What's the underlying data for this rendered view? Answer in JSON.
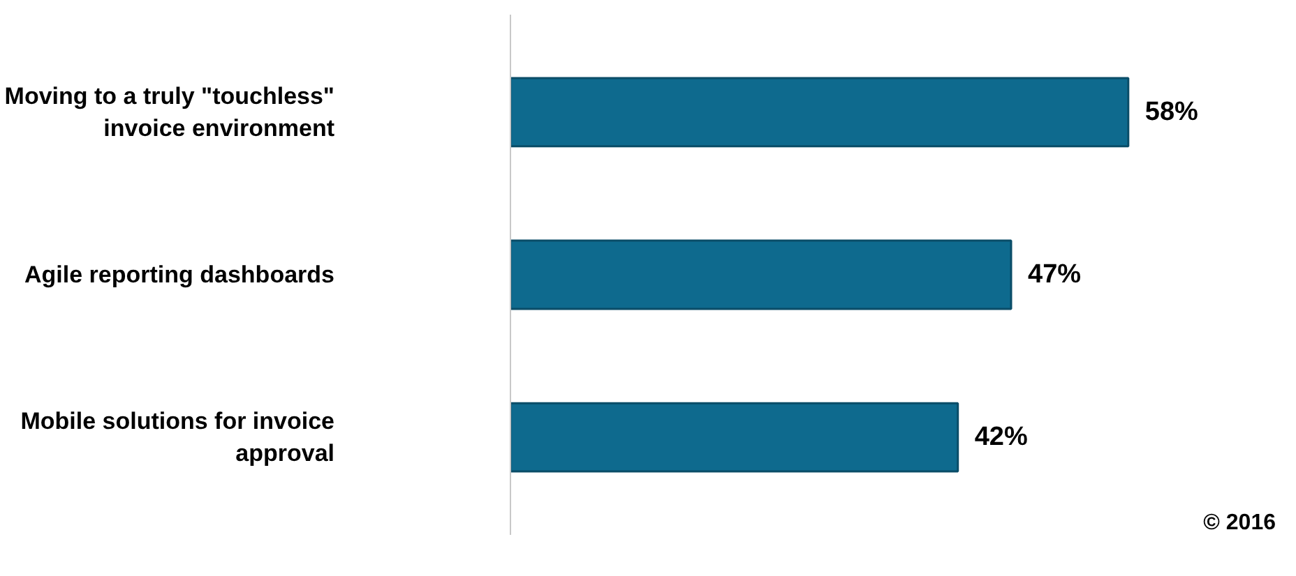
{
  "chart_data": {
    "type": "bar",
    "orientation": "horizontal",
    "categories": [
      "Moving to a truly \"touchless\" invoice environment",
      "Agile reporting dashboards",
      "Mobile solutions for invoice approval"
    ],
    "values": [
      58,
      47,
      42
    ],
    "value_labels": [
      "58%",
      "47%",
      "42%"
    ],
    "color": "#0e6a8e",
    "grid": false,
    "annotations": [
      "© 2016"
    ]
  }
}
